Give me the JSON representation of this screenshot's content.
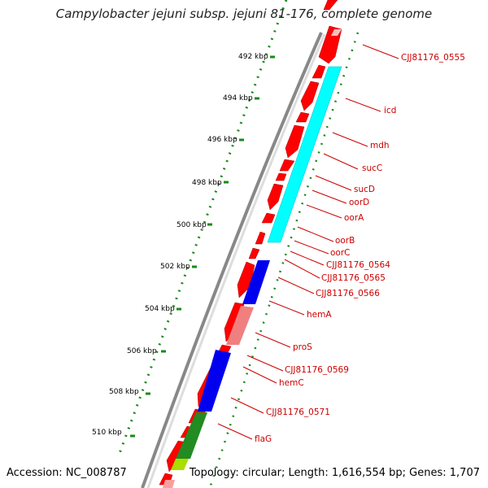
{
  "title": "Campylobacter jejuni subsp. jejuni 81-176, complete genome",
  "footer": {
    "accession": "Accession: NC_008787",
    "summary": "Topology: circular; Length: 1,616,554 bp; Genes: 1,707"
  },
  "ticks": [
    "492 kbp",
    "494 kbp",
    "496 kbp",
    "498 kbp",
    "500 kbp",
    "502 kbp",
    "504 kbp",
    "506 kbp",
    "508 kbp",
    "510 kbp"
  ],
  "genes": [
    "CJJ81176_0555",
    "icd",
    "mdh",
    "sucC",
    "sucD",
    "oorD",
    "oorA",
    "oorB",
    "oorC",
    "CJJ81176_0564",
    "CJJ81176_0565",
    "CJJ81176_0566",
    "hemA",
    "proS",
    "CJJ81176_0569",
    "hemC",
    "CJJ81176_0571",
    "flaG"
  ],
  "colors": {
    "forward": "#ff0000",
    "cyan": "#00ffff",
    "blue": "#0000ee",
    "pink": "#f08080",
    "green": "#228b22",
    "lightgreen": "#aadd00",
    "label": "#cc0000",
    "dots": "#1a8a1a",
    "backbone": "#888888"
  }
}
